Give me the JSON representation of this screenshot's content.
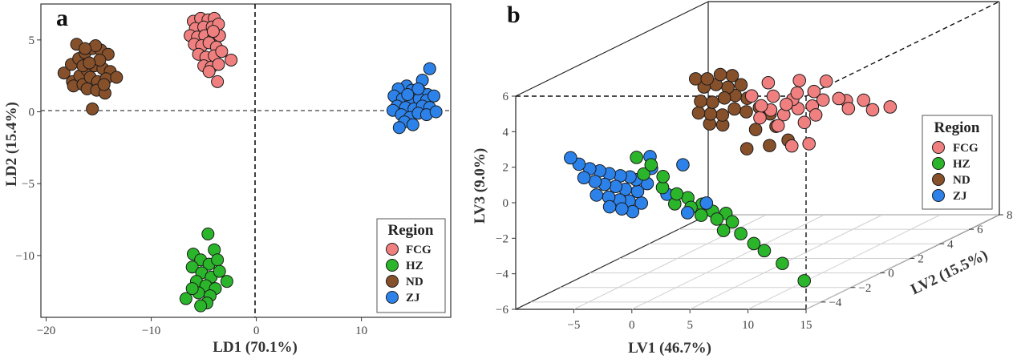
{
  "panel_a_label": "a",
  "panel_b_label": "b",
  "chart_data": [
    {
      "type": "scatter",
      "title": "",
      "xlabel": "LD1 (70.1%)",
      "ylabel": "LD2 (15.4%)",
      "xlim": [
        -20.5,
        18.5
      ],
      "ylim": [
        -14.3,
        7.5
      ],
      "xticks": [
        -20,
        -10,
        0,
        10
      ],
      "yticks": [
        -10,
        -5,
        0,
        5
      ],
      "reference_lines": {
        "x": 0,
        "y": 0,
        "style": "dashed"
      },
      "legend": {
        "title": "Region",
        "placement": "bottom-right"
      },
      "series": [
        {
          "name": "FCG",
          "color": "#f07f7f",
          "points": [
            [
              -6,
              6.3
            ],
            [
              -5.3,
              6.5
            ],
            [
              -4.6,
              6.4
            ],
            [
              -4,
              6.5
            ],
            [
              -5.8,
              5.8
            ],
            [
              -5,
              5.9
            ],
            [
              -4.2,
              5.9
            ],
            [
              -3.6,
              6.1
            ],
            [
              -6.3,
              5.3
            ],
            [
              -5.6,
              5.2
            ],
            [
              -4.9,
              5.3
            ],
            [
              -4.1,
              5.1
            ],
            [
              -3.5,
              5.3
            ],
            [
              -5.9,
              4.7
            ],
            [
              -5.2,
              4.6
            ],
            [
              -4.5,
              4.8
            ],
            [
              -3.8,
              4.5
            ],
            [
              -5.5,
              4
            ],
            [
              -4.8,
              3.8
            ],
            [
              -4,
              3.9
            ],
            [
              -3.3,
              4.2
            ],
            [
              -5,
              3.2
            ],
            [
              -4.3,
              3.1
            ],
            [
              -3.6,
              3.3
            ],
            [
              -2.4,
              3.6
            ],
            [
              -4.5,
              2.8
            ],
            [
              -3.7,
              2.1
            ],
            [
              -4.1,
              5.6
            ]
          ]
        },
        {
          "name": "HZ",
          "color": "#2bb52b",
          "points": [
            [
              -4.6,
              -8.5
            ],
            [
              -6,
              -9.9
            ],
            [
              -4,
              -9.6
            ],
            [
              -5.3,
              -10.3
            ],
            [
              -4.5,
              -10.6
            ],
            [
              -3.7,
              -10.3
            ],
            [
              -6.1,
              -10.8
            ],
            [
              -5.2,
              -11.2
            ],
            [
              -4.3,
              -11.5
            ],
            [
              -3.5,
              -11.1
            ],
            [
              -5.7,
              -11.8
            ],
            [
              -4.8,
              -12.1
            ],
            [
              -3.9,
              -12.3
            ],
            [
              -2.8,
              -11.8
            ],
            [
              -5.5,
              -12.6
            ],
            [
              -4.4,
              -12.8
            ],
            [
              -6.7,
              -13
            ],
            [
              -4.7,
              -13.3
            ],
            [
              -5.3,
              -13.5
            ],
            [
              -6.1,
              -12.3
            ]
          ]
        },
        {
          "name": "ND",
          "color": "#86502b",
          "points": [
            [
              -18.3,
              2.7
            ],
            [
              -17.6,
              3.3
            ],
            [
              -16.9,
              3.7
            ],
            [
              -16.3,
              4.1
            ],
            [
              -15.6,
              4.4
            ],
            [
              -14.8,
              4.3
            ],
            [
              -14.1,
              4
            ],
            [
              -17.1,
              4.7
            ],
            [
              -15.3,
              4.6
            ],
            [
              -17.5,
              2.1
            ],
            [
              -16.8,
              2.5
            ],
            [
              -16.1,
              2.9
            ],
            [
              -15.4,
              3.2
            ],
            [
              -14.6,
              3
            ],
            [
              -13.9,
              2.8
            ],
            [
              -17.4,
              1.8
            ],
            [
              -16.5,
              1.9
            ],
            [
              -15.8,
              2.4
            ],
            [
              -15.1,
              2.1
            ],
            [
              -14.3,
              2.3
            ],
            [
              -13.3,
              2.4
            ],
            [
              -16.1,
              1.6
            ],
            [
              -15.2,
              1.5
            ],
            [
              -14.4,
              1.3
            ],
            [
              -16.5,
              3.2
            ],
            [
              -15.6,
              0.2
            ],
            [
              -16.3,
              4.4
            ],
            [
              -14.9,
              3.6
            ],
            [
              -15.9,
              3.4
            ],
            [
              -14.5,
              1.9
            ]
          ]
        },
        {
          "name": "ZJ",
          "color": "#2d82ea",
          "points": [
            [
              16.5,
              3
            ],
            [
              15.8,
              2.2
            ],
            [
              14.3,
              1.8
            ],
            [
              13.5,
              1.6
            ],
            [
              14.8,
              1.5
            ],
            [
              15.6,
              1.4
            ],
            [
              16.3,
              1.2
            ],
            [
              13.1,
              1.1
            ],
            [
              13.9,
              0.9
            ],
            [
              14.7,
              0.8
            ],
            [
              15.5,
              0.9
            ],
            [
              16.2,
              0.8
            ],
            [
              16.9,
              1.1
            ],
            [
              13.4,
              0.4
            ],
            [
              14.2,
              0.3
            ],
            [
              15,
              0.2
            ],
            [
              15.8,
              0.4
            ],
            [
              16.5,
              0.3
            ],
            [
              13,
              0.1
            ],
            [
              13.8,
              -0.2
            ],
            [
              14.6,
              -0.4
            ],
            [
              15.4,
              -0.1
            ],
            [
              16.2,
              -0.2
            ],
            [
              17.1,
              0
            ],
            [
              14.1,
              -0.7
            ],
            [
              14.9,
              -0.9
            ],
            [
              13.6,
              -1.1
            ],
            [
              15.4,
              1.6
            ],
            [
              14.4,
              1.2
            ]
          ]
        }
      ]
    },
    {
      "type": "scatter",
      "title": "",
      "projection": "3d",
      "xlabel": "LV1 (46.7%)",
      "ylabel": "LV2 (15.5%)",
      "zlabel": "LV3 (9.0%)",
      "xlim": [
        -10,
        15
      ],
      "ylim": [
        -5,
        8
      ],
      "zlim": [
        -6,
        6
      ],
      "xticks": [
        -5,
        0,
        5,
        10,
        15
      ],
      "yticks": [
        -4,
        -2,
        0,
        2,
        4,
        6,
        8
      ],
      "zticks": [
        -6,
        -4,
        -2,
        0,
        2,
        4,
        6
      ],
      "legend": {
        "title": "Region",
        "placement": "right"
      },
      "series": [
        {
          "name": "FCG",
          "color": "#f07f7f",
          "points": [
            [
              5.6,
              -1.3,
              4.5
            ],
            [
              6.3,
              -1.2,
              3.9
            ],
            [
              7.2,
              -1.1,
              4.4
            ],
            [
              8.2,
              -1,
              3.9
            ],
            [
              9,
              -0.9,
              4.5
            ],
            [
              6.6,
              -0.8,
              3.5
            ],
            [
              7.6,
              -0.7,
              3.2
            ],
            [
              5.8,
              -0.9,
              3.1
            ],
            [
              8.7,
              -0.6,
              3.5
            ],
            [
              9.8,
              -0.5,
              3.6
            ],
            [
              10.6,
              -0.4,
              3.9
            ],
            [
              10.2,
              -0.7,
              4.5
            ],
            [
              11.7,
              -0.2,
              3.9
            ],
            [
              12.4,
              -0.1,
              3.3
            ],
            [
              9.2,
              -0.9,
              5.2
            ],
            [
              8.5,
              -0.8,
              4.1
            ],
            [
              10.1,
              -0.5,
              3.1
            ],
            [
              9.5,
              -0.8,
              2.8
            ],
            [
              13.2,
              0.3,
              3.6
            ],
            [
              14.1,
              0.2,
              3.1
            ],
            [
              15.1,
              0.6,
              3.1
            ],
            [
              11,
              -0.5,
              5
            ],
            [
              12.1,
              0,
              3.7
            ],
            [
              8.8,
              -1.1,
              1.6
            ],
            [
              9.9,
              -0.8,
              1.6
            ],
            [
              7.5,
              -1,
              2.7
            ],
            [
              6.9,
              -1.2,
              5.2
            ]
          ]
        },
        {
          "name": "HZ",
          "color": "#2bb52b",
          "points": [
            [
              -1,
              -3.9,
              2.1
            ],
            [
              0,
              -3.7,
              1.6
            ],
            [
              -0.9,
              -3.5,
              1
            ],
            [
              0.9,
              -3.6,
              0.9
            ],
            [
              0.6,
              -3.4,
              0.2
            ],
            [
              1.7,
              -3.3,
              -0.2
            ],
            [
              2.4,
              -3.1,
              -0.5
            ],
            [
              1.4,
              -3.2,
              -0.8
            ],
            [
              2.8,
              -3.2,
              -1
            ],
            [
              3.5,
              -3,
              -0.9
            ],
            [
              4.4,
              -3,
              -1.3
            ],
            [
              5.3,
              -2.8,
              -1.5
            ],
            [
              3.8,
              -3.3,
              -1.4
            ],
            [
              4.9,
              -3.1,
              -1.7
            ],
            [
              6.1,
              -3,
              -1.9
            ],
            [
              5.6,
              -3.2,
              -2.3
            ],
            [
              6.7,
              -2.9,
              -2.6
            ],
            [
              7.7,
              -2.8,
              -3.2
            ],
            [
              8.6,
              -2.8,
              -3.6
            ],
            [
              9.9,
              -2.6,
              -4.4
            ],
            [
              11.4,
              -2.3,
              -5.5
            ]
          ]
        },
        {
          "name": "ZJ",
          "color": "#2d82ea",
          "points": [
            [
              -6.3,
              -4.2,
              2.2
            ],
            [
              -5.7,
              -4.1,
              1.8
            ],
            [
              -4.9,
              -4,
              1.5
            ],
            [
              -4.3,
              -3.8,
              1.3
            ],
            [
              -3.6,
              -3.7,
              1.1
            ],
            [
              -2.9,
              -3.5,
              0.9
            ],
            [
              -2.2,
              -3.4,
              0.8
            ],
            [
              -1.8,
              -3.3,
              0.6
            ],
            [
              -5.4,
              -4,
              1
            ],
            [
              -4.7,
              -3.8,
              0.7
            ],
            [
              -4,
              -3.7,
              0.5
            ],
            [
              -3.3,
              -3.5,
              0.3
            ],
            [
              -2.6,
              -3.4,
              0.1
            ],
            [
              -1.8,
              -3.2,
              -0.1
            ],
            [
              -4.7,
              -3.7,
              -0.1
            ],
            [
              -3.9,
              -3.5,
              -0.3
            ],
            [
              -3.1,
              -3.4,
              -0.5
            ],
            [
              -2.4,
              -3.3,
              -0.6
            ],
            [
              -1.6,
              -3.1,
              -0.8
            ],
            [
              -3.7,
              -3.6,
              -0.8
            ],
            [
              -2.9,
              -3.4,
              -1
            ],
            [
              -2.1,
              -3.3,
              -1.2
            ],
            [
              -1.1,
              -3.1,
              0.3
            ],
            [
              -0.6,
              -3.2,
              1.2
            ],
            [
              0.6,
              -3.1,
              -0.3
            ],
            [
              2.1,
              -3.2,
              1.4
            ],
            [
              2.5,
              -3.2,
              -1.3
            ],
            [
              4,
              -3.1,
              -0.8
            ],
            [
              -0.6,
              -3.3,
              1.9
            ]
          ]
        },
        {
          "name": "ND",
          "color": "#86502b",
          "points": [
            [
              0.9,
              -1.4,
              5.5
            ],
            [
              1.9,
              -1.4,
              5.5
            ],
            [
              2.9,
              -1.3,
              5.7
            ],
            [
              3.8,
              -1.2,
              5.6
            ],
            [
              1.5,
              -1.3,
              5
            ],
            [
              2.4,
              -1.2,
              5.1
            ],
            [
              3.3,
              -1.1,
              4.9
            ],
            [
              4.3,
              -1,
              5
            ],
            [
              1.2,
              -1.3,
              4.2
            ],
            [
              2.1,
              -1.2,
              4.1
            ],
            [
              3,
              -1.1,
              4.3
            ],
            [
              3.8,
              -1,
              4.4
            ],
            [
              4.7,
              -0.9,
              4.2
            ],
            [
              0.9,
              -1.2,
              3.5
            ],
            [
              1.8,
              -1.1,
              3.4
            ],
            [
              2.7,
              -1,
              3.3
            ],
            [
              3.6,
              -0.9,
              3.6
            ],
            [
              4.5,
              -0.8,
              3.4
            ],
            [
              5.5,
              -0.7,
              3.6
            ],
            [
              1.6,
              -1,
              2.8
            ],
            [
              2.6,
              -0.9,
              2.7
            ],
            [
              6.3,
              -0.6,
              3.2
            ],
            [
              6.8,
              -0.6,
              2.5
            ],
            [
              5.3,
              -0.8,
              2.4
            ],
            [
              4.8,
              -1,
              1.4
            ],
            [
              6.5,
              -0.8,
              1.5
            ],
            [
              8.1,
              -0.8,
              1.8
            ]
          ]
        }
      ]
    }
  ]
}
